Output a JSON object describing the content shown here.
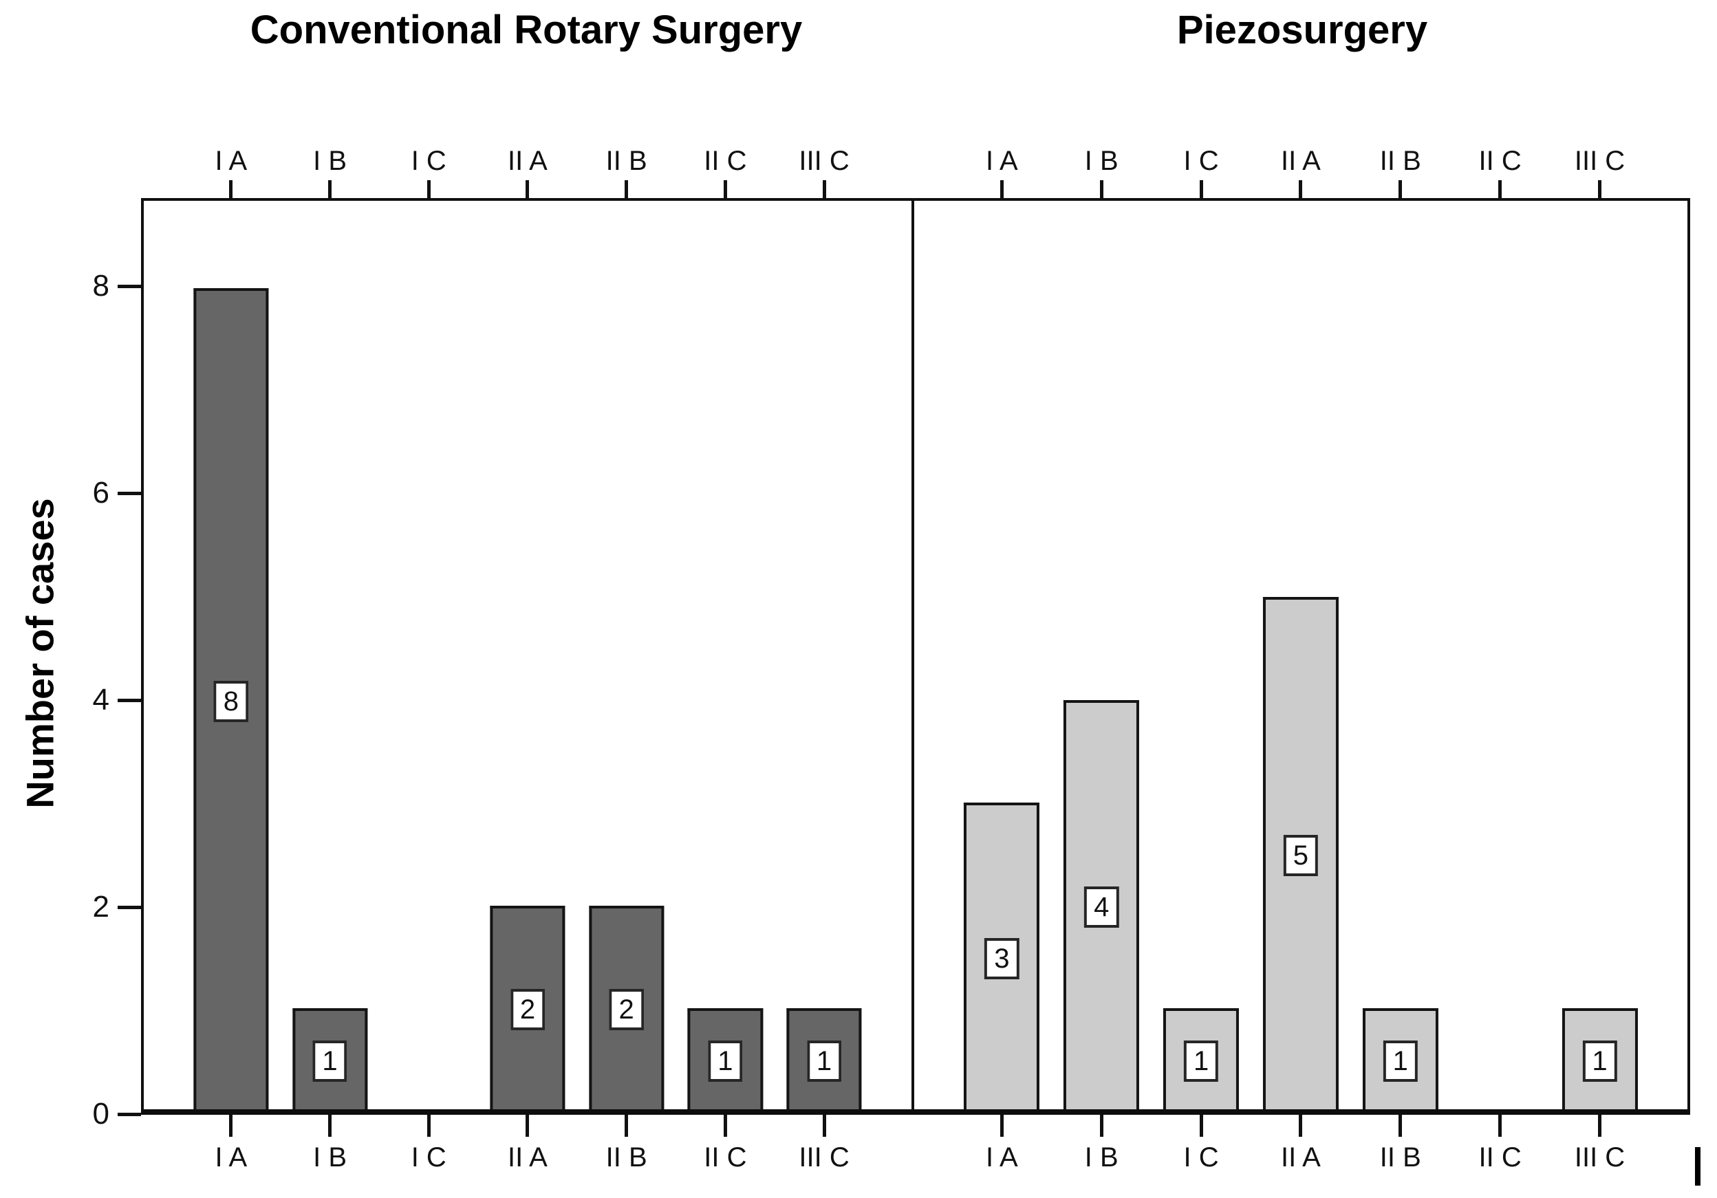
{
  "figure": {
    "background": "#ffffff",
    "text_color": "#111111"
  },
  "chart_data": {
    "type": "bar",
    "layout": "two side-by-side facet panels sharing one y-axis",
    "categories": [
      "I A",
      "I B",
      "I C",
      "II A",
      "II B",
      "II C",
      "III C"
    ],
    "series": [
      {
        "name": "Conventional Rotary Surgery",
        "values": [
          8,
          1,
          0,
          2,
          2,
          1,
          1
        ],
        "fill": "#666666",
        "bar_border": "#141414"
      },
      {
        "name": "Piezosurgery",
        "values": [
          3,
          4,
          1,
          5,
          1,
          0,
          1
        ],
        "fill": "#cccccc",
        "bar_border": "#141414"
      }
    ],
    "title": "",
    "xlabel": "",
    "ylabel": "Number of cases",
    "yticks": [
      0,
      2,
      4,
      6,
      8
    ],
    "ylim": [
      0,
      8.85
    ],
    "grid": false,
    "legend": false,
    "x_axis_labels_shown": "top and bottom of each panel",
    "bar_value_labels": "each nonzero bar shows its value in a white bordered box at the bar's vertical center"
  },
  "artifacts": {
    "text_cursor_mark": "|"
  }
}
